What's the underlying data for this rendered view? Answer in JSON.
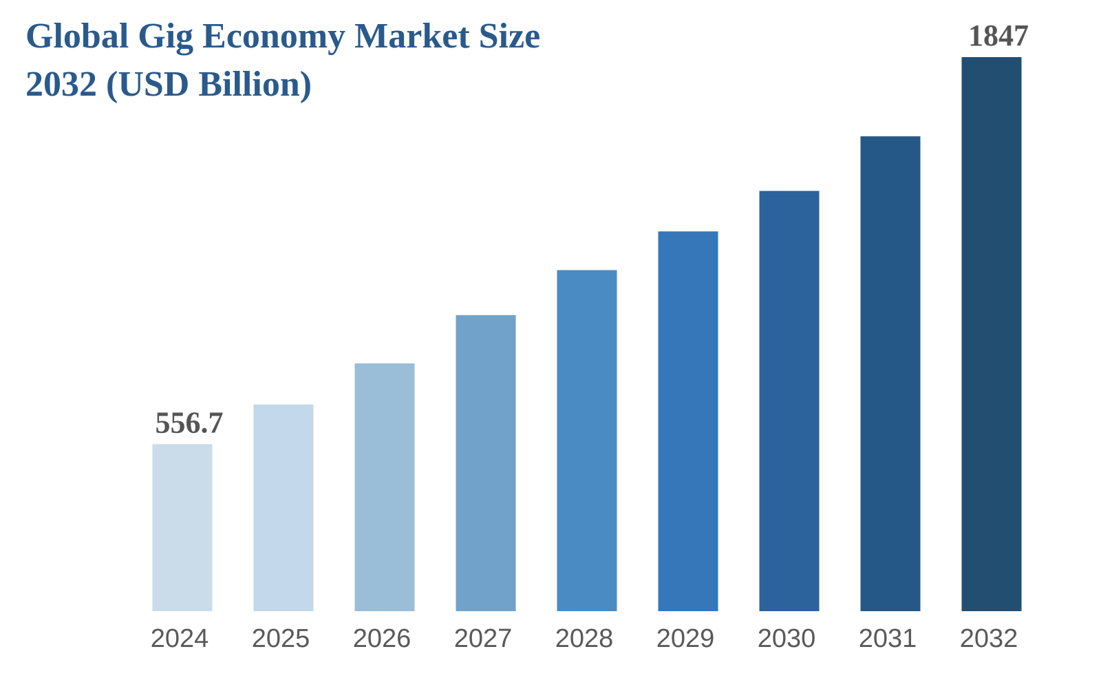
{
  "chart_data": {
    "type": "bar",
    "title": "Global Gig Economy Market Size 2032 (USD Billion)",
    "title_lines": [
      "Global Gig Economy Market Size",
      "2032 (USD Billion)"
    ],
    "categories": [
      "2024",
      "2025",
      "2026",
      "2027",
      "2028",
      "2029",
      "2030",
      "2031",
      "2032"
    ],
    "values": [
      556.7,
      689,
      826,
      987,
      1137,
      1266,
      1401,
      1583,
      1847
    ],
    "data_labels": [
      {
        "category": "2024",
        "text": "556.7"
      },
      {
        "category": "2032",
        "text": "1847"
      }
    ],
    "colors": [
      "#cadbea",
      "#c3d8ea",
      "#9abdd8",
      "#70a2ca",
      "#4a8bc3",
      "#3577b9",
      "#2c639c",
      "#265887",
      "#224e72"
    ],
    "xlabel": "",
    "ylabel": "",
    "ylim": [
      0,
      1900
    ],
    "grid": false,
    "legend": "none"
  }
}
